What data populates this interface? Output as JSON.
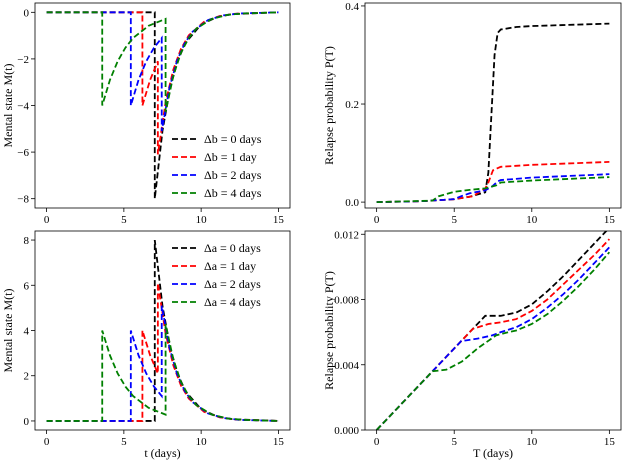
{
  "chart_data": [
    {
      "type": "line",
      "ylabel": "Mental state M(t)",
      "legend": "lower right",
      "xlim": [
        -0.75,
        15.75
      ],
      "ylim": [
        -8.4,
        0.4
      ],
      "xticks": [
        0,
        5,
        10,
        15
      ],
      "yticks": [
        0,
        {
          "value": -2,
          "label": "−2"
        },
        {
          "value": -4,
          "label": "−4"
        },
        {
          "value": -6,
          "label": "−6"
        },
        {
          "value": -8,
          "label": "−8"
        }
      ],
      "series": [
        {
          "name": "Δb = 0 days",
          "color": "#000000",
          "x": [
            0,
            7,
            7,
            7.5,
            8,
            8.5,
            9,
            10,
            11,
            12,
            15
          ],
          "values": [
            0,
            0,
            -8,
            -5.08,
            -3.22,
            -2.05,
            -1.3,
            -0.52,
            -0.21,
            -0.08,
            0
          ]
        },
        {
          "name": "Δb = 1 day",
          "color": "#ff0000",
          "x": [
            0,
            6.2,
            6.2,
            6.7,
            7.2,
            7.2,
            7.7,
            8.2,
            8.7,
            9.2,
            10.2,
            11.2,
            12.2,
            15
          ],
          "values": [
            0,
            0,
            -4,
            -2.9,
            -2.1,
            -6.1,
            -3.87,
            -2.46,
            -1.56,
            -0.99,
            -0.4,
            -0.16,
            -0.06,
            0
          ]
        },
        {
          "name": "Δb = 2 days",
          "color": "#0000ff",
          "x": [
            0,
            5.45,
            5.45,
            5.95,
            6.45,
            6.95,
            7.45,
            7.45,
            7.95,
            8.45,
            8.95,
            9.45,
            10.45,
            11.45,
            12.45,
            15
          ],
          "values": [
            0,
            0,
            -4,
            -2.9,
            -2.1,
            -1.52,
            -1.1,
            -5.1,
            -3.24,
            -2.06,
            -1.31,
            -0.83,
            -0.33,
            -0.13,
            -0.05,
            0
          ]
        },
        {
          "name": "Δb = 4 days",
          "color": "#008000",
          "x": [
            0,
            3.6,
            3.6,
            4.1,
            4.6,
            5.1,
            5.6,
            6.6,
            7.7,
            7.7,
            8.2,
            8.7,
            9.2,
            9.7,
            10.7,
            11.7,
            12.7,
            15
          ],
          "values": [
            0,
            0,
            -4,
            -2.9,
            -2.1,
            -1.52,
            -1.1,
            -0.58,
            -0.28,
            -4.28,
            -2.72,
            -1.72,
            -1.1,
            -0.69,
            -0.28,
            -0.11,
            -0.05,
            0
          ]
        }
      ]
    },
    {
      "type": "line",
      "ylabel": "Relapse probability P(T)",
      "xlim": [
        -0.75,
        15.75
      ],
      "ylim": [
        -0.012,
        0.406
      ],
      "xticks": [
        0,
        5,
        10,
        15
      ],
      "yticks": [
        {
          "value": 0,
          "label": "0.0"
        },
        0.2,
        0.4
      ],
      "series": [
        {
          "color": "#000000",
          "x": [
            0,
            3,
            5,
            6,
            7,
            7.2,
            7.4,
            7.6,
            7.8,
            8,
            9,
            10,
            12,
            15
          ],
          "values": [
            0,
            0.002,
            0.006,
            0.011,
            0.02,
            0.06,
            0.18,
            0.3,
            0.345,
            0.352,
            0.357,
            0.359,
            0.361,
            0.364
          ]
        },
        {
          "color": "#ff0000",
          "x": [
            0,
            3,
            5,
            6.2,
            7,
            7.2,
            7.5,
            8,
            10,
            15
          ],
          "values": [
            0,
            0.002,
            0.006,
            0.012,
            0.028,
            0.04,
            0.065,
            0.072,
            0.076,
            0.082
          ]
        },
        {
          "color": "#0000ff",
          "x": [
            0,
            3,
            5,
            5.45,
            6,
            7,
            7.45,
            7.8,
            8,
            10,
            15
          ],
          "values": [
            0,
            0.002,
            0.006,
            0.012,
            0.018,
            0.024,
            0.032,
            0.042,
            0.045,
            0.05,
            0.057
          ]
        },
        {
          "color": "#008000",
          "x": [
            0,
            3.6,
            4,
            5,
            6,
            7,
            7.7,
            8,
            10,
            15
          ],
          "values": [
            0,
            0.003,
            0.012,
            0.021,
            0.025,
            0.028,
            0.034,
            0.04,
            0.044,
            0.051
          ]
        }
      ]
    },
    {
      "type": "line",
      "ylabel": "Mental state M(t)",
      "xlabel": "t (days)",
      "legend": "upper right",
      "xlim": [
        -0.75,
        15.75
      ],
      "ylim": [
        -0.4,
        8.4
      ],
      "xticks": [
        0,
        5,
        10,
        15
      ],
      "yticks": [
        0,
        2,
        4,
        6,
        8
      ],
      "series": [
        {
          "name": "Δa = 0 days",
          "color": "#000000",
          "x": [
            0,
            7,
            7,
            7.5,
            8,
            8.5,
            9,
            10,
            11,
            12,
            15
          ],
          "values": [
            0,
            0,
            8,
            5.08,
            3.22,
            2.05,
            1.3,
            0.52,
            0.21,
            0.08,
            0
          ]
        },
        {
          "name": "Δa = 1 day",
          "color": "#ff0000",
          "x": [
            0,
            6.2,
            6.2,
            6.7,
            7.2,
            7.2,
            7.7,
            8.2,
            8.7,
            9.2,
            10.2,
            11.2,
            12.2,
            15
          ],
          "values": [
            0,
            0,
            4,
            2.9,
            2.1,
            6.1,
            3.87,
            2.46,
            1.56,
            0.99,
            0.4,
            0.16,
            0.06,
            0
          ]
        },
        {
          "name": "Δa = 2 days",
          "color": "#0000ff",
          "x": [
            0,
            5.45,
            5.45,
            5.95,
            6.45,
            6.95,
            7.45,
            7.45,
            7.95,
            8.45,
            8.95,
            9.45,
            10.45,
            11.45,
            12.45,
            15
          ],
          "values": [
            0,
            0,
            4,
            2.9,
            2.1,
            1.52,
            1.1,
            5.1,
            3.24,
            2.06,
            1.31,
            0.83,
            0.33,
            0.13,
            0.05,
            0
          ]
        },
        {
          "name": "Δa = 4 days",
          "color": "#008000",
          "x": [
            0,
            3.6,
            3.6,
            4.1,
            4.6,
            5.1,
            5.6,
            6.6,
            7.7,
            7.7,
            8.2,
            8.7,
            9.2,
            9.7,
            10.7,
            11.7,
            12.7,
            15
          ],
          "values": [
            0,
            0,
            4,
            2.9,
            2.1,
            1.52,
            1.1,
            0.58,
            0.28,
            4.28,
            2.72,
            1.72,
            1.1,
            0.69,
            0.28,
            0.11,
            0.05,
            0
          ]
        }
      ]
    },
    {
      "type": "line",
      "ylabel": "Relapse probability P(T)",
      "xlabel": "T (days)",
      "xlim": [
        -0.75,
        15.75
      ],
      "ylim": [
        0,
        0.0122
      ],
      "xticks": [
        0,
        5,
        10,
        15
      ],
      "yticks": [
        {
          "value": 0,
          "label": "0.000"
        },
        {
          "value": 0.004,
          "label": "0.004"
        },
        {
          "value": 0.008,
          "label": "0.008"
        },
        0.012
      ],
      "series": [
        {
          "color": "#000000",
          "x": [
            0,
            7,
            8,
            9,
            10,
            11,
            12,
            13,
            14,
            15
          ],
          "values": [
            0,
            0.007,
            0.007,
            0.0072,
            0.0077,
            0.0085,
            0.0094,
            0.0104,
            0.0114,
            0.0124
          ]
        },
        {
          "color": "#ff0000",
          "x": [
            0,
            6.2,
            7.2,
            8,
            9,
            10,
            11,
            12,
            13,
            14,
            15
          ],
          "values": [
            0,
            0.0062,
            0.0065,
            0.0066,
            0.0068,
            0.0073,
            0.008,
            0.0089,
            0.0098,
            0.0107,
            0.0117
          ]
        },
        {
          "color": "#0000ff",
          "x": [
            0,
            5.45,
            6.5,
            7.45,
            8,
            9,
            10,
            11,
            12,
            13,
            14,
            15
          ],
          "values": [
            0,
            0.00545,
            0.0056,
            0.0058,
            0.006,
            0.0063,
            0.0068,
            0.0075,
            0.0083,
            0.0092,
            0.0102,
            0.0112
          ]
        },
        {
          "color": "#008000",
          "x": [
            0,
            3.6,
            4.5,
            5.5,
            6.5,
            7.7,
            8.5,
            9,
            10,
            11,
            12,
            13,
            14,
            15
          ],
          "values": [
            0,
            0.0036,
            0.0037,
            0.0042,
            0.005,
            0.0058,
            0.006,
            0.0061,
            0.0065,
            0.0071,
            0.0079,
            0.0088,
            0.0098,
            0.0109
          ]
        }
      ]
    }
  ]
}
